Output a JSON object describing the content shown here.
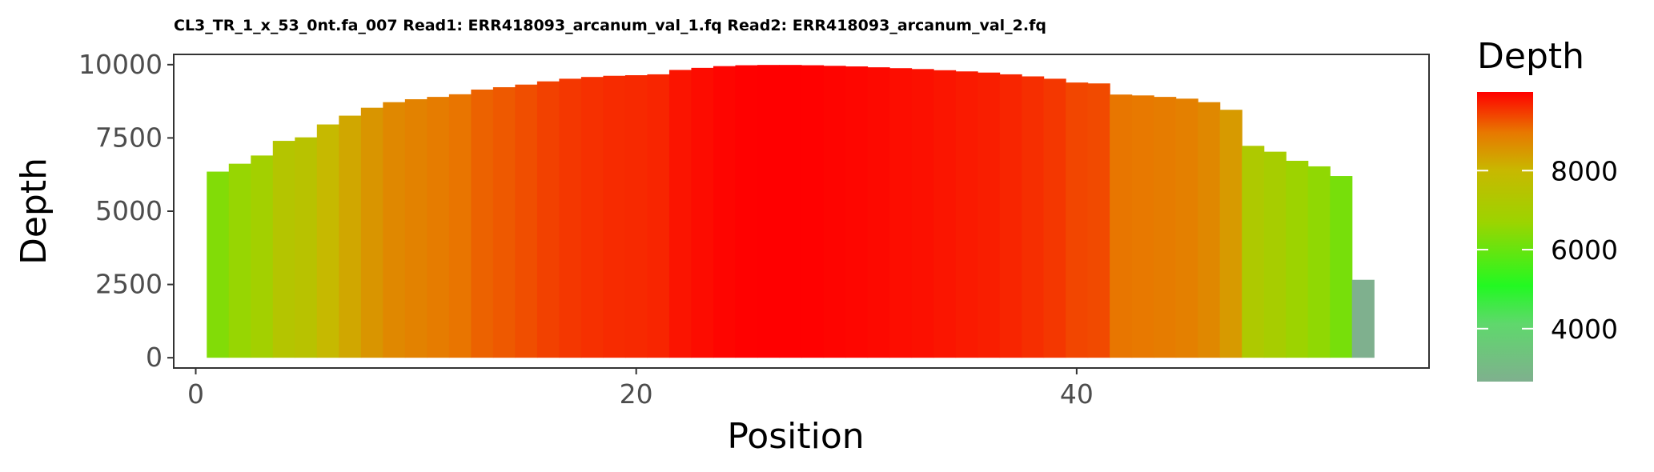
{
  "chart_data": {
    "type": "bar",
    "title": "CL3_TR_1_x_53_0nt.fa_007 Read1: ERR418093_arcanum_val_1.fq Read2: ERR418093_arcanum_val_2.fq",
    "xlabel": "Position",
    "ylabel": "Depth",
    "x": [
      1,
      2,
      3,
      4,
      5,
      6,
      7,
      8,
      9,
      10,
      11,
      12,
      13,
      14,
      15,
      16,
      17,
      18,
      19,
      20,
      21,
      22,
      23,
      24,
      25,
      26,
      27,
      28,
      29,
      30,
      31,
      32,
      33,
      34,
      35,
      36,
      37,
      38,
      39,
      40,
      41,
      42,
      43,
      44,
      45,
      46,
      47,
      48,
      49,
      50,
      51,
      52,
      53,
      54
    ],
    "values": [
      6350,
      6620,
      6900,
      7400,
      7520,
      7960,
      8260,
      8530,
      8720,
      8820,
      8900,
      8990,
      9150,
      9230,
      9320,
      9430,
      9520,
      9580,
      9620,
      9640,
      9670,
      9820,
      9890,
      9950,
      9980,
      9990,
      9990,
      9980,
      9960,
      9940,
      9910,
      9880,
      9850,
      9810,
      9770,
      9730,
      9670,
      9600,
      9520,
      9390,
      9360,
      8980,
      8950,
      8900,
      8840,
      8720,
      8460,
      7230,
      7030,
      6720,
      6530,
      6200,
      2660,
      0
    ],
    "xlim": [
      -1,
      56
    ],
    "ylim": [
      -350,
      10350
    ],
    "xticks": [
      0,
      20,
      40
    ],
    "yticks": [
      0,
      2500,
      5000,
      7500,
      10000
    ],
    "legend": {
      "title": "Depth",
      "placement": "right",
      "ticks": [
        4000,
        6000,
        8000
      ],
      "range": [
        2660,
        9990
      ],
      "colors": [
        "#7fb08e",
        "#22f922",
        "#c8b800",
        "#ff0000"
      ]
    },
    "grid": false
  }
}
